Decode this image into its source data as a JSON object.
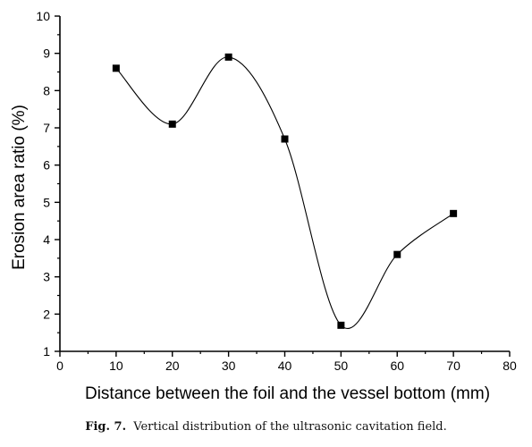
{
  "chart_data": {
    "type": "scatter",
    "xlabel": "Distance between the foil and the vessel bottom (mm)",
    "ylabel": "Erosion area ratio (%)",
    "xlim": [
      0,
      80
    ],
    "ylim": [
      1,
      10
    ],
    "xticks": [
      0,
      10,
      20,
      30,
      40,
      50,
      60,
      70,
      80
    ],
    "yticks": [
      1,
      2,
      3,
      4,
      5,
      6,
      7,
      8,
      9,
      10
    ],
    "x": [
      10,
      20,
      30,
      40,
      50,
      60,
      70
    ],
    "y": [
      8.6,
      7.1,
      8.9,
      6.7,
      1.7,
      3.6,
      4.7
    ],
    "marker": "filled square",
    "smooth_curve": true,
    "grid": false,
    "colors": {
      "marker": "#000000",
      "curve": "#000000",
      "axis": "#000000"
    }
  },
  "caption": {
    "label": "Fig. 7.",
    "text": "Vertical distribution of the ultrasonic cavitation field."
  }
}
